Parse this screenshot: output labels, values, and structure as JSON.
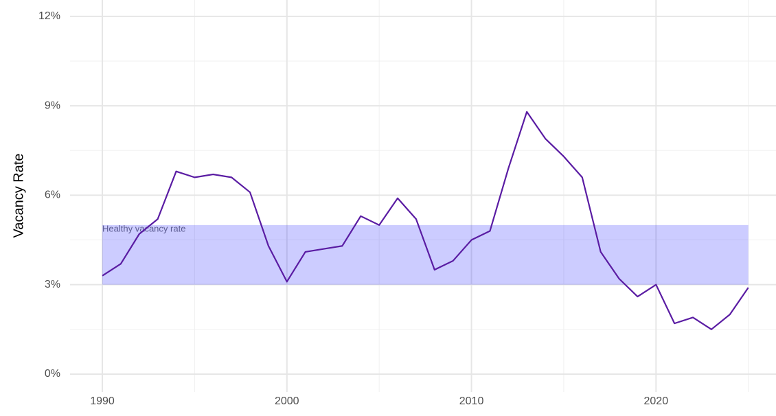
{
  "chart_data": {
    "type": "line",
    "y_label": "Vacancy Rate",
    "x": [
      1990,
      1991,
      1992,
      1993,
      1994,
      1995,
      1996,
      1997,
      1998,
      1999,
      2000,
      2001,
      2002,
      2003,
      2004,
      2005,
      2006,
      2007,
      2008,
      2009,
      2010,
      2011,
      2012,
      2013,
      2014,
      2015,
      2016,
      2017,
      2018,
      2019,
      2020,
      2021,
      2022,
      2023,
      2024,
      2025
    ],
    "series": [
      {
        "color": "#5a1ca3",
        "values": [
          3.3,
          3.7,
          4.7,
          5.2,
          6.8,
          6.6,
          6.7,
          6.6,
          6.1,
          4.3,
          3.1,
          4.1,
          4.2,
          4.3,
          5.3,
          5.0,
          5.9,
          5.2,
          3.5,
          3.8,
          4.5,
          4.8,
          6.9,
          8.8,
          7.9,
          7.3,
          6.6,
          4.1,
          3.2,
          2.6,
          3.0,
          1.7,
          1.9,
          1.5,
          2.0,
          2.9
        ]
      }
    ],
    "band": {
      "xmin": 1990,
      "xmax": 2025,
      "ymin": 3,
      "ymax": 5,
      "color": "#0000ff",
      "opacity": 0.2,
      "label": "Healthy vacancy rate"
    },
    "xlim": [
      1988.25,
      2026.5
    ],
    "ylim": [
      -0.6,
      12.55
    ],
    "xticks": [
      1990,
      2000,
      2010,
      2020
    ],
    "xminor": [
      1995,
      2005,
      2015,
      2025
    ],
    "yticks": [
      {
        "value": 0,
        "label": "0%"
      },
      {
        "value": 3,
        "label": "3%"
      },
      {
        "value": 6,
        "label": "6%"
      },
      {
        "value": 9,
        "label": "9%"
      },
      {
        "value": 12,
        "label": "12%"
      }
    ],
    "yminor": [
      1.5,
      4.5,
      7.5,
      10.5
    ],
    "grid": true
  }
}
